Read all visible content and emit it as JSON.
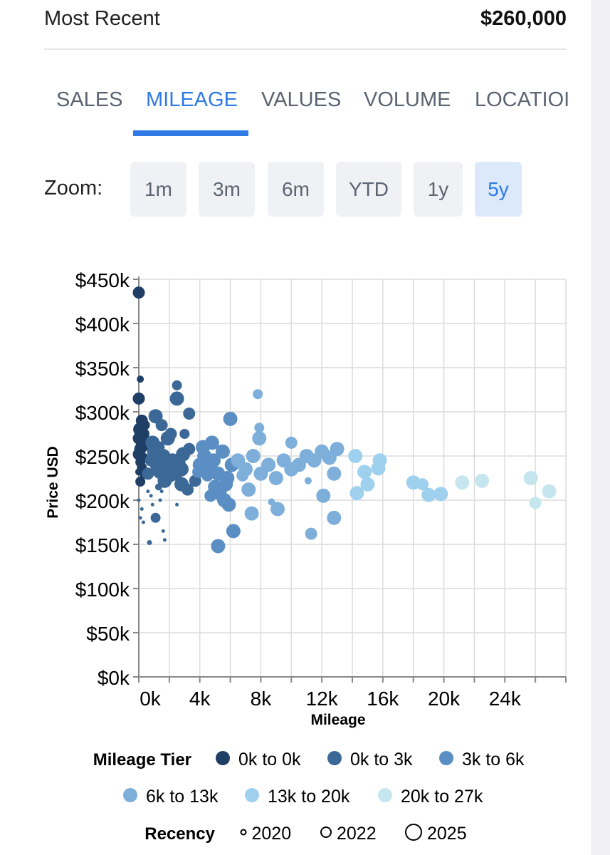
{
  "summary": {
    "label": "Most Recent",
    "value": "$260,000"
  },
  "tabs": [
    {
      "label": "SALES",
      "active": false
    },
    {
      "label": "MILEAGE",
      "active": true
    },
    {
      "label": "VALUES",
      "active": false
    },
    {
      "label": "VOLUME",
      "active": false
    },
    {
      "label": "LOCATIOI",
      "active": false
    }
  ],
  "zoom": {
    "label": "Zoom:",
    "options": [
      "1m",
      "3m",
      "6m",
      "YTD",
      "1y",
      "5y"
    ],
    "selected": "5y"
  },
  "colors": {
    "accent": "#2f7ae5",
    "tier_0_0": "#1f3f66",
    "tier_0_3": "#3b6897",
    "tier_3_6": "#5b8fc4",
    "tier_6_13": "#7eafdb",
    "tier_13_20": "#9fd1ee",
    "tier_20_27": "#c5e6ee"
  },
  "chart_data": {
    "type": "scatter",
    "title": "",
    "xlabel": "Mileage",
    "ylabel": "Price USD",
    "xlim": [
      0,
      28000
    ],
    "ylim": [
      0,
      450000
    ],
    "x_ticks": [
      0,
      4000,
      8000,
      12000,
      16000,
      20000,
      24000
    ],
    "x_tick_labels": [
      "0k",
      "4k",
      "8k",
      "12k",
      "16k",
      "20k",
      "24k"
    ],
    "y_ticks": [
      0,
      50000,
      100000,
      150000,
      200000,
      250000,
      300000,
      350000,
      400000,
      450000
    ],
    "y_tick_labels": [
      "$0k",
      "$50k",
      "$100k",
      "$150k",
      "$200k",
      "$250k",
      "$300k",
      "$350k",
      "$400k",
      "$450k"
    ],
    "grid": true,
    "legend": {
      "tier_title": "Mileage Tier",
      "tiers": [
        {
          "label": "0k to 0k",
          "color": "#1f3f66"
        },
        {
          "label": "0k to 3k",
          "color": "#3b6897"
        },
        {
          "label": "3k to 6k",
          "color": "#5b8fc4"
        },
        {
          "label": "6k to 13k",
          "color": "#7eafdb"
        },
        {
          "label": "13k to 20k",
          "color": "#9fd1ee"
        },
        {
          "label": "20k to 27k",
          "color": "#c5e6ee"
        }
      ],
      "recency_title": "Recency",
      "recency": [
        {
          "label": "2020",
          "year": 2020
        },
        {
          "label": "2022",
          "year": 2022
        },
        {
          "label": "2025",
          "year": 2025
        }
      ]
    },
    "points": [
      [
        0,
        435000,
        0,
        2024
      ],
      [
        0,
        315000,
        0,
        2024
      ],
      [
        100,
        337000,
        0,
        2022
      ],
      [
        200,
        290000,
        0,
        2024
      ],
      [
        100,
        280000,
        0,
        2025
      ],
      [
        300,
        275000,
        0,
        2024
      ],
      [
        0,
        270000,
        0,
        2024
      ],
      [
        200,
        265000,
        0,
        2024
      ],
      [
        100,
        258000,
        0,
        2024
      ],
      [
        0,
        252000,
        0,
        2024
      ],
      [
        300,
        248000,
        0,
        2023
      ],
      [
        100,
        243000,
        0,
        2023
      ],
      [
        200,
        237000,
        0,
        2023
      ],
      [
        0,
        232000,
        0,
        2022
      ],
      [
        300,
        228000,
        0,
        2022
      ],
      [
        100,
        221000,
        0,
        2023
      ],
      [
        400,
        285000,
        0,
        2023
      ],
      [
        500,
        260000,
        0,
        2022
      ],
      [
        0,
        200000,
        1,
        2020
      ],
      [
        200,
        190000,
        1,
        2020
      ],
      [
        100,
        180000,
        1,
        2020
      ],
      [
        300,
        175000,
        1,
        2020
      ],
      [
        600,
        210000,
        1,
        2020
      ],
      [
        800,
        205000,
        1,
        2020
      ],
      [
        900,
        195000,
        1,
        2020
      ],
      [
        700,
        152000,
        1,
        2021
      ],
      [
        1100,
        180000,
        1,
        2023
      ],
      [
        1400,
        200000,
        1,
        2020
      ],
      [
        1600,
        165000,
        1,
        2020
      ],
      [
        1700,
        155000,
        1,
        2020
      ],
      [
        1300,
        215000,
        1,
        2022
      ],
      [
        1500,
        210000,
        1,
        2020
      ],
      [
        2500,
        195000,
        1,
        2020
      ],
      [
        600,
        230000,
        1,
        2024
      ],
      [
        800,
        245000,
        1,
        2024
      ],
      [
        1000,
        255000,
        1,
        2025
      ],
      [
        1200,
        240000,
        1,
        2025
      ],
      [
        1400,
        232000,
        1,
        2025
      ],
      [
        1600,
        250000,
        1,
        2025
      ],
      [
        1800,
        226000,
        1,
        2025
      ],
      [
        2000,
        238000,
        1,
        2025
      ],
      [
        2200,
        245000,
        1,
        2025
      ],
      [
        2400,
        230000,
        1,
        2025
      ],
      [
        2600,
        242000,
        1,
        2025
      ],
      [
        2800,
        235000,
        1,
        2025
      ],
      [
        1100,
        295000,
        1,
        2025
      ],
      [
        1500,
        285000,
        1,
        2024
      ],
      [
        1900,
        270000,
        1,
        2025
      ],
      [
        2100,
        275000,
        1,
        2024
      ],
      [
        2500,
        315000,
        1,
        2025
      ],
      [
        2500,
        330000,
        1,
        2023
      ],
      [
        3300,
        298000,
        1,
        2024
      ],
      [
        3300,
        258000,
        1,
        2024
      ],
      [
        2900,
        252000,
        1,
        2025
      ],
      [
        1300,
        260000,
        1,
        2024
      ],
      [
        1700,
        222000,
        1,
        2025
      ],
      [
        900,
        265000,
        1,
        2025
      ],
      [
        2000,
        228000,
        1,
        2025
      ],
      [
        2800,
        218000,
        1,
        2025
      ],
      [
        3200,
        212000,
        1,
        2024
      ],
      [
        3700,
        222000,
        1,
        2024
      ],
      [
        3000,
        275000,
        1,
        2023
      ],
      [
        4000,
        240000,
        2,
        2025
      ],
      [
        4300,
        250000,
        2,
        2025
      ],
      [
        4600,
        235000,
        2,
        2025
      ],
      [
        4900,
        245000,
        2,
        2025
      ],
      [
        5200,
        230000,
        2,
        2025
      ],
      [
        5500,
        255000,
        2,
        2025
      ],
      [
        5800,
        225000,
        2,
        2025
      ],
      [
        6100,
        240000,
        2,
        2025
      ],
      [
        4200,
        260000,
        2,
        2025
      ],
      [
        4800,
        265000,
        2,
        2025
      ],
      [
        5000,
        215000,
        2,
        2025
      ],
      [
        5300,
        208000,
        2,
        2025
      ],
      [
        5600,
        200000,
        2,
        2025
      ],
      [
        5900,
        195000,
        2,
        2025
      ],
      [
        5200,
        148000,
        2,
        2025
      ],
      [
        6200,
        165000,
        2,
        2025
      ],
      [
        4500,
        228000,
        2,
        2024
      ],
      [
        4700,
        205000,
        2,
        2024
      ],
      [
        3900,
        232000,
        2,
        2024
      ],
      [
        6000,
        292000,
        2,
        2025
      ],
      [
        5700,
        218000,
        2,
        2025
      ],
      [
        4400,
        245000,
        2,
        2024
      ],
      [
        6500,
        245000,
        3,
        2025
      ],
      [
        7000,
        235000,
        3,
        2025
      ],
      [
        7500,
        250000,
        3,
        2025
      ],
      [
        8000,
        230000,
        3,
        2025
      ],
      [
        8500,
        240000,
        3,
        2025
      ],
      [
        9000,
        225000,
        3,
        2025
      ],
      [
        9500,
        245000,
        3,
        2025
      ],
      [
        10000,
        235000,
        3,
        2025
      ],
      [
        10500,
        240000,
        3,
        2025
      ],
      [
        11000,
        250000,
        3,
        2025
      ],
      [
        11500,
        245000,
        3,
        2025
      ],
      [
        12000,
        255000,
        3,
        2025
      ],
      [
        12500,
        248000,
        3,
        2025
      ],
      [
        13000,
        258000,
        3,
        2025
      ],
      [
        12800,
        230000,
        3,
        2025
      ],
      [
        12800,
        180000,
        3,
        2025
      ],
      [
        11300,
        162000,
        3,
        2024
      ],
      [
        9100,
        190000,
        3,
        2025
      ],
      [
        7400,
        185000,
        3,
        2025
      ],
      [
        7900,
        270000,
        3,
        2025
      ],
      [
        7800,
        320000,
        3,
        2023
      ],
      [
        7900,
        282000,
        3,
        2023
      ],
      [
        10000,
        265000,
        3,
        2024
      ],
      [
        11100,
        222000,
        3,
        2022
      ],
      [
        12100,
        205000,
        3,
        2025
      ],
      [
        7200,
        212000,
        3,
        2025
      ],
      [
        8700,
        198000,
        3,
        2022
      ],
      [
        6800,
        228000,
        3,
        2024
      ],
      [
        14200,
        250000,
        4,
        2025
      ],
      [
        15000,
        218000,
        4,
        2025
      ],
      [
        15800,
        245000,
        4,
        2025
      ],
      [
        14300,
        208000,
        4,
        2025
      ],
      [
        14800,
        232000,
        4,
        2025
      ],
      [
        18000,
        220000,
        4,
        2025
      ],
      [
        18600,
        218000,
        4,
        2024
      ],
      [
        19000,
        206000,
        4,
        2025
      ],
      [
        19800,
        207000,
        4,
        2025
      ],
      [
        15700,
        236000,
        4,
        2025
      ],
      [
        21200,
        220000,
        5,
        2025
      ],
      [
        22500,
        222000,
        5,
        2025
      ],
      [
        25700,
        225000,
        5,
        2025
      ],
      [
        26000,
        197000,
        5,
        2024
      ],
      [
        26900,
        210000,
        5,
        2025
      ]
    ]
  }
}
